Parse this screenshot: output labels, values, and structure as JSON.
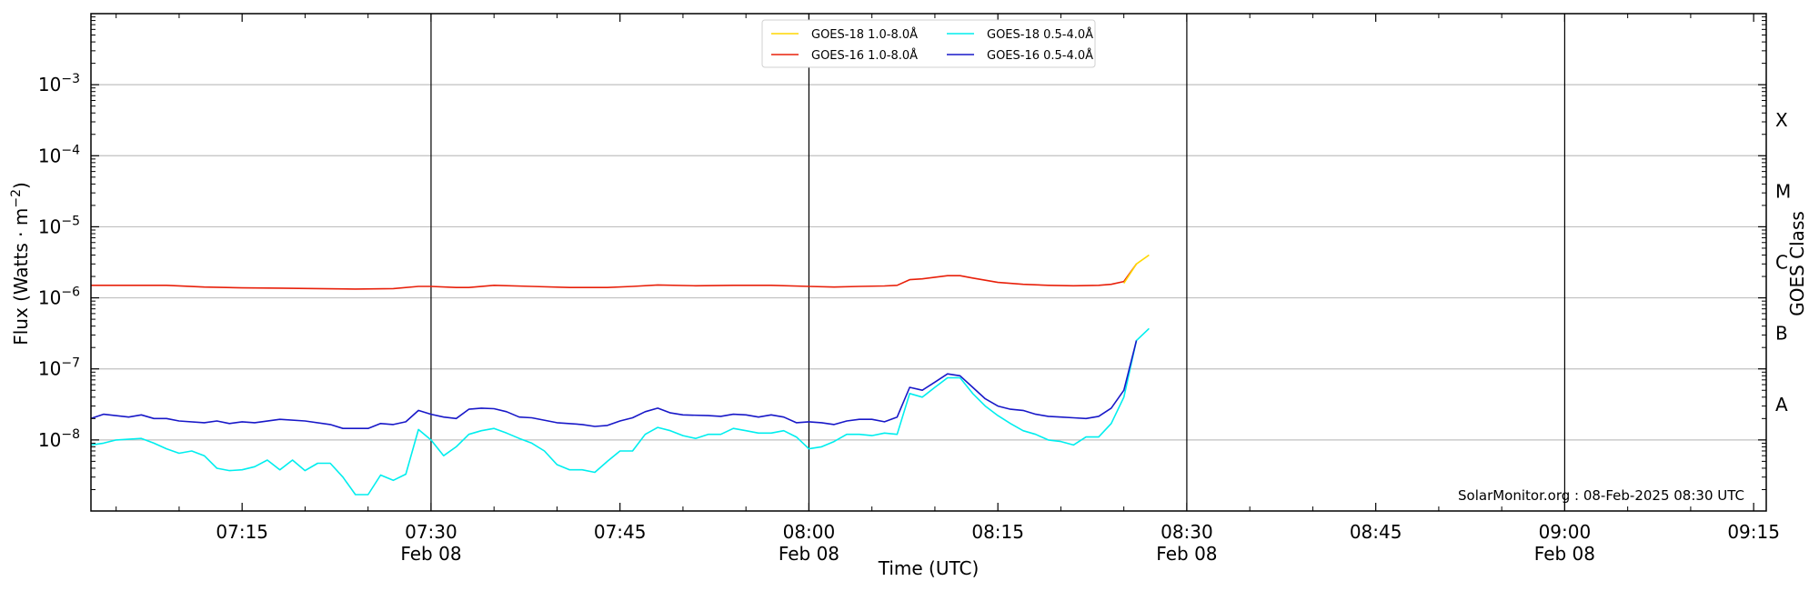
{
  "chart_data": {
    "type": "line",
    "xlabel": "Time (UTC)",
    "ylabel": "Flux (Watts · m",
    "ylabel_sup": "−2",
    "ylabel_close": ")",
    "right_label": "GOES Class",
    "y_scale": "log",
    "ylim": [
      1e-09,
      0.01
    ],
    "xlim": [
      "07:03",
      "09:16"
    ],
    "grid": "horizontal at decades, vertical at half-hours",
    "legend_placement": "top-center",
    "y_ticks": [
      {
        "value": 1e-08,
        "base": "10",
        "exp": "−8"
      },
      {
        "value": 1e-07,
        "base": "10",
        "exp": "−7"
      },
      {
        "value": 1e-06,
        "base": "10",
        "exp": "−6"
      },
      {
        "value": 1e-05,
        "base": "10",
        "exp": "−5"
      },
      {
        "value": 0.0001,
        "base": "10",
        "exp": "−4"
      },
      {
        "value": 0.001,
        "base": "10",
        "exp": "−3"
      }
    ],
    "x_ticks": [
      {
        "time": "07:15",
        "label": "07:15",
        "date": ""
      },
      {
        "time": "07:30",
        "label": "07:30",
        "date": "Feb 08"
      },
      {
        "time": "07:45",
        "label": "07:45",
        "date": ""
      },
      {
        "time": "08:00",
        "label": "08:00",
        "date": "Feb 08"
      },
      {
        "time": "08:15",
        "label": "08:15",
        "date": ""
      },
      {
        "time": "08:30",
        "label": "08:30",
        "date": "Feb 08"
      },
      {
        "time": "08:45",
        "label": "08:45",
        "date": ""
      },
      {
        "time": "09:00",
        "label": "09:00",
        "date": "Feb 08"
      },
      {
        "time": "09:15",
        "label": "09:15",
        "date": ""
      }
    ],
    "classes": [
      {
        "label": "A",
        "value": 3.16e-08
      },
      {
        "label": "B",
        "value": 3.16e-07
      },
      {
        "label": "C",
        "value": 3.16e-06
      },
      {
        "label": "M",
        "value": 3.16e-05
      },
      {
        "label": "X",
        "value": 0.000316
      }
    ],
    "series": [
      {
        "name": "GOES-18 1.0-8.0Å",
        "color": "#ffd700",
        "points": [
          [
            "08:25",
            1.6e-06
          ],
          [
            "08:26",
            3e-06
          ],
          [
            "08:27",
            4e-06
          ]
        ]
      },
      {
        "name": "GOES-16 1.0-8.0Å",
        "color": "#e8200a",
        "points": [
          [
            "07:03",
            1.5e-06
          ],
          [
            "07:06",
            1.5e-06
          ],
          [
            "07:09",
            1.5e-06
          ],
          [
            "07:12",
            1.42e-06
          ],
          [
            "07:15",
            1.38e-06
          ],
          [
            "07:18",
            1.37e-06
          ],
          [
            "07:21",
            1.35e-06
          ],
          [
            "07:24",
            1.33e-06
          ],
          [
            "07:27",
            1.35e-06
          ],
          [
            "07:29",
            1.45e-06
          ],
          [
            "07:30",
            1.45e-06
          ],
          [
            "07:32",
            1.4e-06
          ],
          [
            "07:33",
            1.4e-06
          ],
          [
            "07:35",
            1.5e-06
          ],
          [
            "07:38",
            1.45e-06
          ],
          [
            "07:41",
            1.4e-06
          ],
          [
            "07:44",
            1.4e-06
          ],
          [
            "07:46",
            1.45e-06
          ],
          [
            "07:48",
            1.52e-06
          ],
          [
            "07:51",
            1.48e-06
          ],
          [
            "07:54",
            1.5e-06
          ],
          [
            "07:57",
            1.5e-06
          ],
          [
            "08:00",
            1.45e-06
          ],
          [
            "08:02",
            1.42e-06
          ],
          [
            "08:04",
            1.45e-06
          ],
          [
            "08:06",
            1.47e-06
          ],
          [
            "08:07",
            1.5e-06
          ],
          [
            "08:08",
            1.8e-06
          ],
          [
            "08:09",
            1.85e-06
          ],
          [
            "08:10",
            1.95e-06
          ],
          [
            "08:11",
            2.05e-06
          ],
          [
            "08:12",
            2.05e-06
          ],
          [
            "08:13",
            1.9e-06
          ],
          [
            "08:15",
            1.65e-06
          ],
          [
            "08:17",
            1.55e-06
          ],
          [
            "08:19",
            1.5e-06
          ],
          [
            "08:21",
            1.48e-06
          ],
          [
            "08:23",
            1.5e-06
          ],
          [
            "08:24",
            1.55e-06
          ],
          [
            "08:25",
            1.7e-06
          ],
          [
            "08:26",
            3e-06
          ]
        ]
      },
      {
        "name": "GOES-18 0.5-4.0Å",
        "color": "#00eeee",
        "points": [
          [
            "07:03",
            8.5e-09
          ],
          [
            "07:04",
            9e-09
          ],
          [
            "07:05",
            1e-08
          ],
          [
            "07:07",
            1.05e-08
          ],
          [
            "07:08",
            9e-09
          ],
          [
            "07:09",
            7.5e-09
          ],
          [
            "07:10",
            6.5e-09
          ],
          [
            "07:11",
            7e-09
          ],
          [
            "07:12",
            6e-09
          ],
          [
            "07:13",
            4e-09
          ],
          [
            "07:14",
            3.7e-09
          ],
          [
            "07:15",
            3.8e-09
          ],
          [
            "07:16",
            4.2e-09
          ],
          [
            "07:17",
            5.2e-09
          ],
          [
            "07:18",
            3.8e-09
          ],
          [
            "07:19",
            5.2e-09
          ],
          [
            "07:20",
            3.7e-09
          ],
          [
            "07:21",
            4.7e-09
          ],
          [
            "07:22",
            4.7e-09
          ],
          [
            "07:23",
            3e-09
          ],
          [
            "07:24",
            1.7e-09
          ],
          [
            "07:25",
            1.7e-09
          ],
          [
            "07:26",
            3.2e-09
          ],
          [
            "07:27",
            2.7e-09
          ],
          [
            "07:28",
            3.3e-09
          ],
          [
            "07:29",
            1.4e-08
          ],
          [
            "07:30",
            1e-08
          ],
          [
            "07:31",
            6e-09
          ],
          [
            "07:32",
            8e-09
          ],
          [
            "07:33",
            1.2e-08
          ],
          [
            "07:34",
            1.35e-08
          ],
          [
            "07:35",
            1.45e-08
          ],
          [
            "07:36",
            1.25e-08
          ],
          [
            "07:37",
            1.05e-08
          ],
          [
            "07:38",
            9e-09
          ],
          [
            "07:39",
            7e-09
          ],
          [
            "07:40",
            4.5e-09
          ],
          [
            "07:41",
            3.8e-09
          ],
          [
            "07:42",
            3.8e-09
          ],
          [
            "07:43",
            3.5e-09
          ],
          [
            "07:44",
            5e-09
          ],
          [
            "07:45",
            7e-09
          ],
          [
            "07:46",
            7e-09
          ],
          [
            "07:47",
            1.2e-08
          ],
          [
            "07:48",
            1.5e-08
          ],
          [
            "07:49",
            1.35e-08
          ],
          [
            "07:50",
            1.15e-08
          ],
          [
            "07:51",
            1.05e-08
          ],
          [
            "07:52",
            1.2e-08
          ],
          [
            "07:53",
            1.2e-08
          ],
          [
            "07:54",
            1.45e-08
          ],
          [
            "07:55",
            1.35e-08
          ],
          [
            "07:56",
            1.25e-08
          ],
          [
            "07:57",
            1.25e-08
          ],
          [
            "07:58",
            1.35e-08
          ],
          [
            "07:59",
            1.1e-08
          ],
          [
            "08:00",
            7.5e-09
          ],
          [
            "08:01",
            8e-09
          ],
          [
            "08:02",
            9.5e-09
          ],
          [
            "08:03",
            1.2e-08
          ],
          [
            "08:04",
            1.2e-08
          ],
          [
            "08:05",
            1.15e-08
          ],
          [
            "08:06",
            1.25e-08
          ],
          [
            "08:07",
            1.2e-08
          ],
          [
            "08:08",
            4.5e-08
          ],
          [
            "08:09",
            4e-08
          ],
          [
            "08:10",
            5.5e-08
          ],
          [
            "08:11",
            7.5e-08
          ],
          [
            "08:12",
            7.5e-08
          ],
          [
            "08:13",
            4.5e-08
          ],
          [
            "08:14",
            3e-08
          ],
          [
            "08:15",
            2.2e-08
          ],
          [
            "08:16",
            1.7e-08
          ],
          [
            "08:17",
            1.35e-08
          ],
          [
            "08:18",
            1.2e-08
          ],
          [
            "08:19",
            1e-08
          ],
          [
            "08:20",
            9.5e-09
          ],
          [
            "08:21",
            8.5e-09
          ],
          [
            "08:22",
            1.1e-08
          ],
          [
            "08:23",
            1.1e-08
          ],
          [
            "08:24",
            1.7e-08
          ],
          [
            "08:25",
            4e-08
          ],
          [
            "08:26",
            2.5e-07
          ],
          [
            "08:27",
            3.7e-07
          ]
        ]
      },
      {
        "name": "GOES-16 0.5-4.0Å",
        "color": "#1818c8",
        "points": [
          [
            "07:03",
            2e-08
          ],
          [
            "07:04",
            2.3e-08
          ],
          [
            "07:06",
            2.1e-08
          ],
          [
            "07:07",
            2.25e-08
          ],
          [
            "07:08",
            2e-08
          ],
          [
            "07:09",
            2e-08
          ],
          [
            "07:10",
            1.85e-08
          ],
          [
            "07:12",
            1.75e-08
          ],
          [
            "07:13",
            1.85e-08
          ],
          [
            "07:14",
            1.7e-08
          ],
          [
            "07:15",
            1.8e-08
          ],
          [
            "07:16",
            1.75e-08
          ],
          [
            "07:18",
            1.95e-08
          ],
          [
            "07:20",
            1.85e-08
          ],
          [
            "07:22",
            1.65e-08
          ],
          [
            "07:23",
            1.45e-08
          ],
          [
            "07:25",
            1.45e-08
          ],
          [
            "07:26",
            1.7e-08
          ],
          [
            "07:27",
            1.65e-08
          ],
          [
            "07:28",
            1.8e-08
          ],
          [
            "07:29",
            2.6e-08
          ],
          [
            "07:30",
            2.3e-08
          ],
          [
            "07:31",
            2.1e-08
          ],
          [
            "07:32",
            2e-08
          ],
          [
            "07:33",
            2.7e-08
          ],
          [
            "07:34",
            2.8e-08
          ],
          [
            "07:35",
            2.75e-08
          ],
          [
            "07:36",
            2.5e-08
          ],
          [
            "07:37",
            2.1e-08
          ],
          [
            "07:38",
            2.05e-08
          ],
          [
            "07:40",
            1.75e-08
          ],
          [
            "07:42",
            1.65e-08
          ],
          [
            "07:43",
            1.55e-08
          ],
          [
            "07:44",
            1.6e-08
          ],
          [
            "07:45",
            1.85e-08
          ],
          [
            "07:46",
            2.05e-08
          ],
          [
            "07:47",
            2.5e-08
          ],
          [
            "07:48",
            2.8e-08
          ],
          [
            "07:49",
            2.4e-08
          ],
          [
            "07:50",
            2.25e-08
          ],
          [
            "07:52",
            2.2e-08
          ],
          [
            "07:53",
            2.15e-08
          ],
          [
            "07:54",
            2.3e-08
          ],
          [
            "07:55",
            2.25e-08
          ],
          [
            "07:56",
            2.1e-08
          ],
          [
            "07:57",
            2.25e-08
          ],
          [
            "07:58",
            2.1e-08
          ],
          [
            "07:59",
            1.75e-08
          ],
          [
            "08:00",
            1.8e-08
          ],
          [
            "08:01",
            1.75e-08
          ],
          [
            "08:02",
            1.65e-08
          ],
          [
            "08:03",
            1.85e-08
          ],
          [
            "08:04",
            1.95e-08
          ],
          [
            "08:05",
            1.95e-08
          ],
          [
            "08:06",
            1.8e-08
          ],
          [
            "08:07",
            2.1e-08
          ],
          [
            "08:08",
            5.5e-08
          ],
          [
            "08:09",
            5e-08
          ],
          [
            "08:10",
            6.5e-08
          ],
          [
            "08:11",
            8.5e-08
          ],
          [
            "08:12",
            8e-08
          ],
          [
            "08:13",
            5.5e-08
          ],
          [
            "08:14",
            3.8e-08
          ],
          [
            "08:15",
            3e-08
          ],
          [
            "08:16",
            2.7e-08
          ],
          [
            "08:17",
            2.6e-08
          ],
          [
            "08:18",
            2.3e-08
          ],
          [
            "08:19",
            2.15e-08
          ],
          [
            "08:20",
            2.1e-08
          ],
          [
            "08:21",
            2.05e-08
          ],
          [
            "08:22",
            2e-08
          ],
          [
            "08:23",
            2.15e-08
          ],
          [
            "08:24",
            2.8e-08
          ],
          [
            "08:25",
            5e-08
          ],
          [
            "08:26",
            2.5e-07
          ]
        ]
      }
    ],
    "annotation": "SolarMonitor.org : 08-Feb-2025 08:30 UTC"
  }
}
